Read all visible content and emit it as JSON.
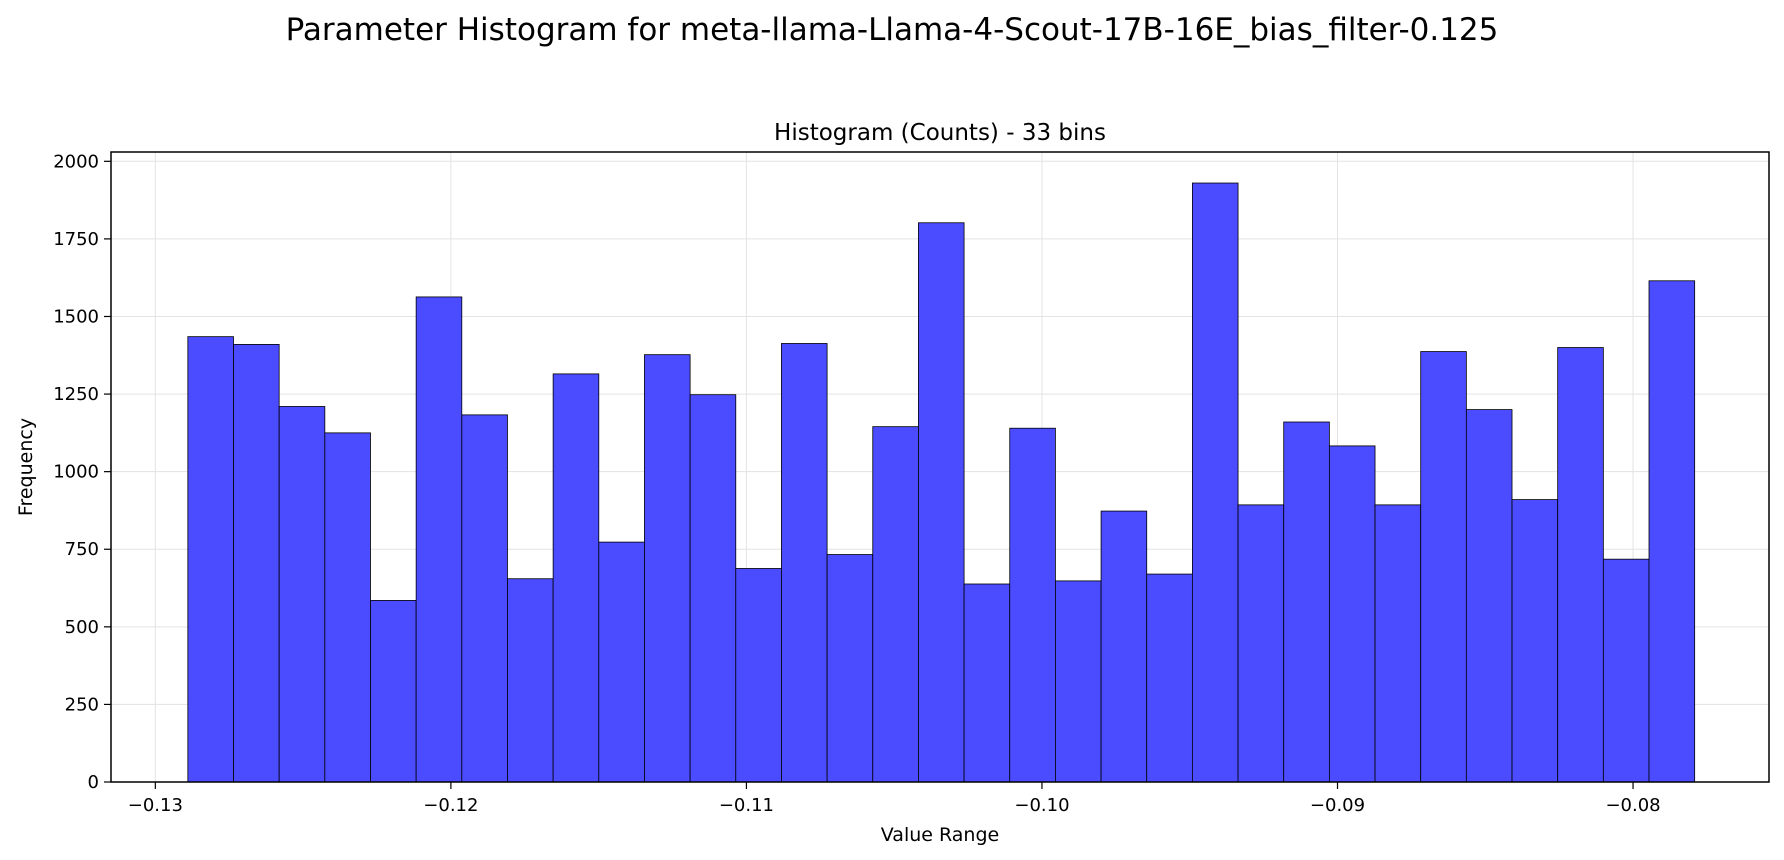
{
  "figure_title": "Parameter Histogram for meta-llama-Llama-4-Scout-17B-16E_bias_filter-0.125",
  "colors": {
    "bar_fill": "#4b4bff",
    "bar_edge": "#000000",
    "grid": "#e3e3e3"
  },
  "chart_data": {
    "type": "bar",
    "title": "Histogram (Counts) - 33 bins",
    "xlabel": "Value Range",
    "ylabel": "Frequency",
    "grid": true,
    "xlim": [
      -0.1315,
      -0.0754
    ],
    "ylim": [
      0,
      2030
    ],
    "bin_start": -0.1289,
    "bin_width": 0.001545,
    "counts": [
      1435,
      1410,
      1210,
      1125,
      585,
      1563,
      1183,
      655,
      1315,
      773,
      1377,
      1248,
      688,
      1413,
      733,
      1145,
      1802,
      638,
      1140,
      648,
      873,
      670,
      1930,
      893,
      1160,
      1083,
      893,
      1387,
      1200,
      910,
      1400,
      718,
      1615
    ],
    "x_ticks": [
      -0.13,
      -0.12,
      -0.11,
      -0.1,
      -0.09,
      -0.08
    ],
    "x_tick_labels": [
      "−0.13",
      "−0.12",
      "−0.11",
      "−0.10",
      "−0.09",
      "−0.08"
    ],
    "y_ticks": [
      0,
      250,
      500,
      750,
      1000,
      1250,
      1500,
      1750,
      2000
    ],
    "y_tick_labels": [
      "0",
      "250",
      "500",
      "750",
      "1000",
      "1250",
      "1500",
      "1750",
      "2000"
    ]
  }
}
